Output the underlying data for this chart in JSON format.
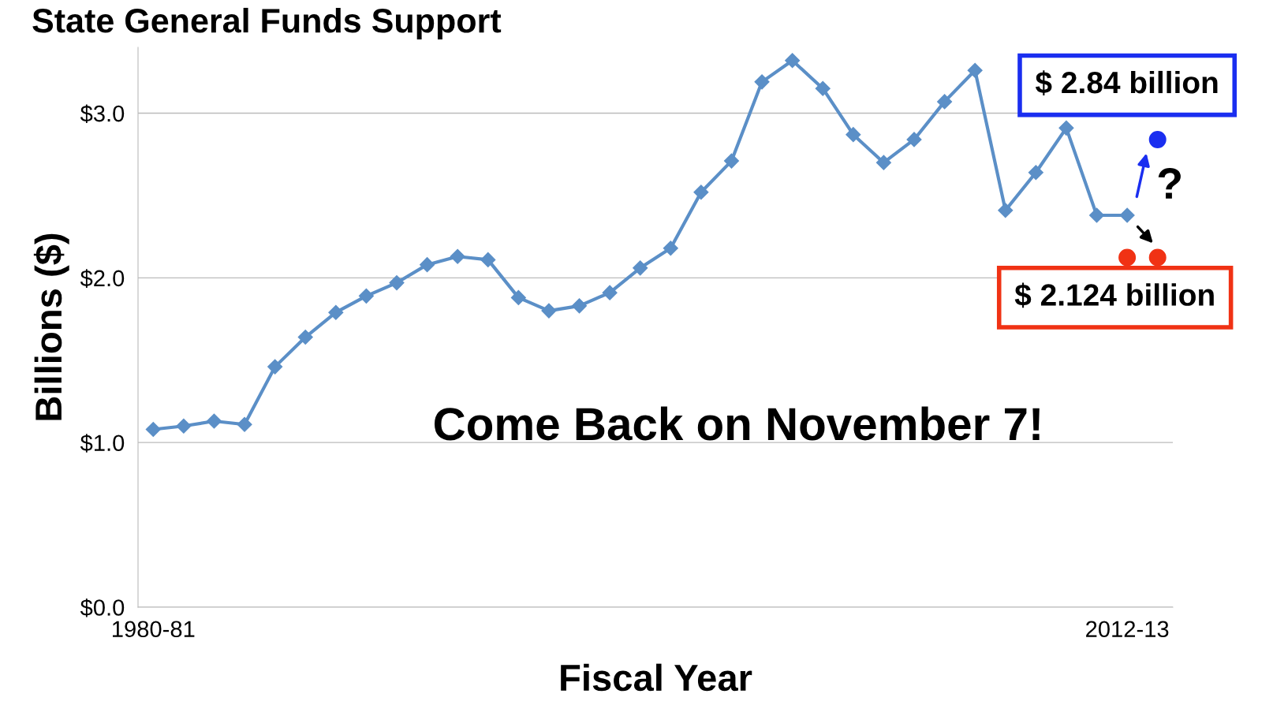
{
  "chart_data": {
    "type": "line",
    "title": "State General Funds Support",
    "xlabel": "Fiscal Year",
    "ylabel": "Billions ($)",
    "categories": [
      "1980-81",
      null,
      null,
      null,
      null,
      null,
      null,
      null,
      null,
      null,
      null,
      null,
      null,
      null,
      null,
      null,
      null,
      null,
      null,
      null,
      null,
      null,
      null,
      null,
      null,
      null,
      null,
      null,
      null,
      null,
      null,
      null,
      "2012-13",
      null
    ],
    "series": [
      {
        "color": "#5b8fc7",
        "marker": "diamond",
        "values": [
          1.08,
          1.1,
          1.13,
          1.11,
          1.46,
          1.64,
          1.79,
          1.89,
          1.97,
          2.08,
          2.13,
          2.11,
          1.88,
          1.8,
          1.83,
          1.91,
          2.06,
          2.18,
          2.52,
          2.71,
          3.19,
          3.32,
          3.15,
          2.87,
          2.7,
          2.84,
          3.07,
          3.26,
          2.41,
          2.64,
          2.91,
          2.38,
          2.38,
          null
        ]
      },
      {
        "type": "scatter",
        "color": "#1a2ef0",
        "marker": "circle",
        "values": [
          null,
          null,
          null,
          null,
          null,
          null,
          null,
          null,
          null,
          null,
          null,
          null,
          null,
          null,
          null,
          null,
          null,
          null,
          null,
          null,
          null,
          null,
          null,
          null,
          null,
          null,
          null,
          null,
          null,
          null,
          null,
          null,
          null,
          2.84
        ]
      },
      {
        "type": "scatter",
        "color": "#f03214",
        "marker": "circle",
        "values": [
          null,
          null,
          null,
          null,
          null,
          null,
          null,
          null,
          null,
          null,
          null,
          null,
          null,
          null,
          null,
          null,
          null,
          null,
          null,
          null,
          null,
          null,
          null,
          null,
          null,
          null,
          null,
          null,
          null,
          null,
          null,
          null,
          2.124,
          2.124
        ]
      }
    ],
    "ylim": [
      0,
      3.4
    ],
    "yticks": [
      {
        "value": 0,
        "label": "$0.0"
      },
      {
        "value": 1,
        "label": "$1.0"
      },
      {
        "value": 2,
        "label": "$2.0"
      },
      {
        "value": 3,
        "label": "$3.0"
      }
    ],
    "grid": "y",
    "legend": false,
    "annotations": [
      "Come Back on November 7!",
      "$ 2.84 billion",
      "$ 2.124 billion",
      "?"
    ]
  }
}
